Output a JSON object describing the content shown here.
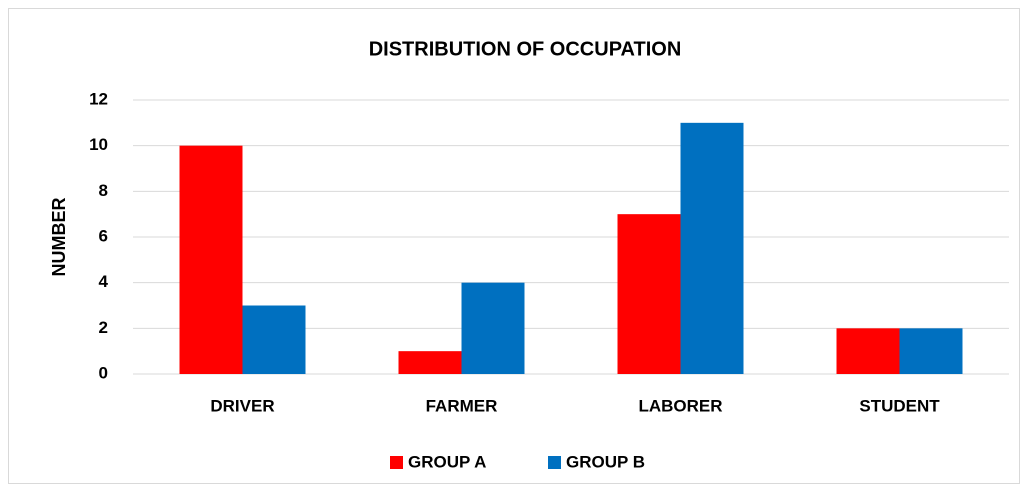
{
  "chart_data": {
    "type": "bar",
    "title": "DISTRIBUTION OF OCCUPATION",
    "y_label": "NUMBER",
    "categories": [
      "DRIVER",
      "FARMER",
      "LABORER",
      "STUDENT"
    ],
    "series": [
      {
        "name": "GROUP A",
        "color": "#ff0000",
        "values": [
          10,
          1,
          7,
          2
        ]
      },
      {
        "name": "GROUP B",
        "color": "#0070c0",
        "values": [
          3,
          4,
          11,
          2
        ]
      }
    ],
    "ylim": [
      0,
      12
    ],
    "yticks": [
      0,
      2,
      4,
      6,
      8,
      10,
      12
    ],
    "grid": true,
    "legend": "bottom"
  }
}
